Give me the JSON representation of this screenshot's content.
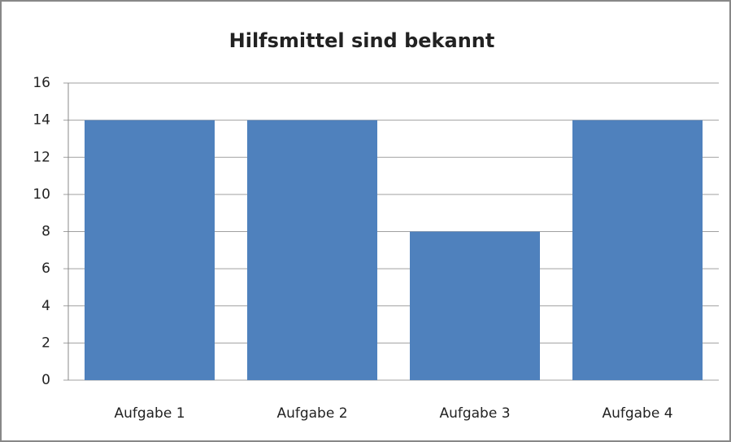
{
  "chart_data": {
    "type": "bar",
    "title": "Hilfsmittel sind bekannt",
    "categories": [
      "Aufgabe 1",
      "Aufgabe 2",
      "Aufgabe 3",
      "Aufgabe 4"
    ],
    "values": [
      14,
      14,
      8,
      14
    ],
    "color": "#4f81bd",
    "ylim": [
      0,
      16
    ],
    "yticks": [
      0,
      2,
      4,
      6,
      8,
      10,
      12,
      14,
      16
    ],
    "grid": true
  }
}
